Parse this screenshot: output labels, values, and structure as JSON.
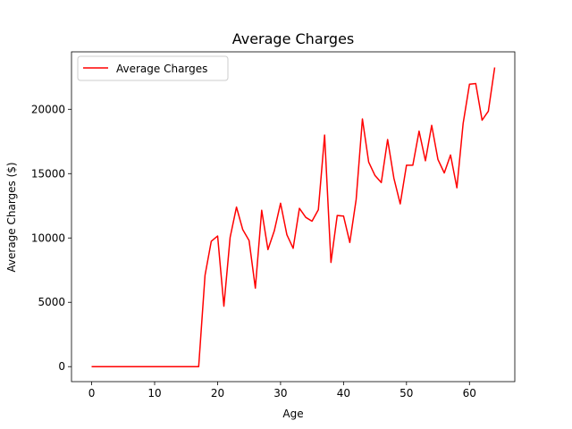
{
  "chart_data": {
    "type": "line",
    "title": "Average Charges",
    "xlabel": "Age",
    "ylabel": "Average Charges ($)",
    "xlim": [
      -3.2,
      67.2
    ],
    "ylim": [
      -1165,
      24465
    ],
    "xticks": [
      0,
      10,
      20,
      30,
      40,
      50,
      60
    ],
    "yticks": [
      0,
      5000,
      10000,
      15000,
      20000
    ],
    "grid": false,
    "legend": "top-left",
    "series": [
      {
        "name": "Average Charges",
        "color": "#ff0000",
        "x": [
          0,
          1,
          2,
          3,
          4,
          5,
          6,
          7,
          8,
          9,
          10,
          11,
          12,
          13,
          14,
          15,
          16,
          17,
          18,
          19,
          20,
          21,
          22,
          23,
          24,
          25,
          26,
          27,
          28,
          29,
          30,
          31,
          32,
          33,
          34,
          35,
          36,
          37,
          38,
          39,
          40,
          41,
          42,
          43,
          44,
          45,
          46,
          47,
          48,
          49,
          50,
          51,
          52,
          53,
          54,
          55,
          56,
          57,
          58,
          59,
          60,
          61,
          62,
          63,
          64
        ],
        "y": [
          0,
          0,
          0,
          0,
          0,
          0,
          0,
          0,
          0,
          0,
          0,
          0,
          0,
          0,
          0,
          0,
          0,
          0,
          7100,
          9750,
          10150,
          4700,
          10050,
          12400,
          10650,
          9800,
          6100,
          12150,
          9100,
          10550,
          12700,
          10250,
          9200,
          12300,
          11600,
          11300,
          12200,
          18000,
          8100,
          11750,
          11700,
          9650,
          13000,
          19250,
          15900,
          14850,
          14300,
          17650,
          14650,
          12650,
          15650,
          15650,
          18300,
          16000,
          18750,
          16100,
          15050,
          16450,
          13900,
          18900,
          21950,
          22000,
          19150,
          19850,
          23250
        ]
      }
    ]
  }
}
